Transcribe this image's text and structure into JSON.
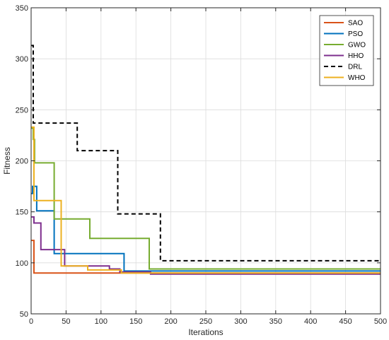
{
  "chart_data": {
    "type": "line",
    "title": "",
    "xlabel": "Iterations",
    "ylabel": "Fitness",
    "xlim": [
      0,
      500
    ],
    "ylim": [
      50,
      350
    ],
    "xticks": [
      0,
      50,
      100,
      150,
      200,
      250,
      300,
      350,
      400,
      450,
      500
    ],
    "yticks": [
      50,
      100,
      150,
      200,
      250,
      300,
      350
    ],
    "grid": true,
    "legend_position": "top-right",
    "series": [
      {
        "name": "SAO",
        "color": "#D95319",
        "dash": "solid",
        "points": [
          [
            0,
            122
          ],
          [
            4,
            122
          ],
          [
            4,
            90
          ],
          [
            500,
            90
          ]
        ]
      },
      {
        "name": "PSO",
        "color": "#0072BD",
        "dash": "solid",
        "points": [
          [
            0,
            168
          ],
          [
            2,
            168
          ],
          [
            2,
            175
          ],
          [
            8,
            175
          ],
          [
            8,
            151
          ],
          [
            22,
            151
          ],
          [
            22,
            151
          ],
          [
            33,
            151
          ],
          [
            33,
            109
          ],
          [
            133,
            109
          ],
          [
            133,
            92
          ],
          [
            500,
            92
          ]
        ]
      },
      {
        "name": "GWO",
        "color": "#77AC30",
        "dash": "solid",
        "points": [
          [
            0,
            232
          ],
          [
            3,
            232
          ],
          [
            3,
            221
          ],
          [
            5,
            221
          ],
          [
            5,
            198
          ],
          [
            33,
            198
          ],
          [
            33,
            143
          ],
          [
            84,
            143
          ],
          [
            84,
            124
          ],
          [
            169,
            124
          ],
          [
            169,
            94
          ],
          [
            500,
            94
          ]
        ]
      },
      {
        "name": "HHO",
        "color": "#7E2F8E",
        "dash": "solid",
        "points": [
          [
            0,
            145
          ],
          [
            4,
            145
          ],
          [
            4,
            139
          ],
          [
            14,
            139
          ],
          [
            14,
            113
          ],
          [
            48,
            113
          ],
          [
            48,
            97
          ],
          [
            112,
            97
          ],
          [
            112,
            94
          ],
          [
            127,
            94
          ],
          [
            127,
            91
          ],
          [
            171,
            91
          ],
          [
            171,
            89
          ],
          [
            500,
            89
          ]
        ]
      },
      {
        "name": "DRL",
        "color": "#000000",
        "dash": "dashed",
        "points": [
          [
            0,
            313
          ],
          [
            3,
            313
          ],
          [
            3,
            237
          ],
          [
            66,
            237
          ],
          [
            66,
            210
          ],
          [
            124,
            210
          ],
          [
            124,
            148
          ],
          [
            185,
            148
          ],
          [
            185,
            102
          ],
          [
            500,
            102
          ]
        ]
      },
      {
        "name": "WHO",
        "color": "#EDB120",
        "dash": "solid",
        "points": [
          [
            0,
            233
          ],
          [
            4,
            233
          ],
          [
            4,
            161
          ],
          [
            43,
            161
          ],
          [
            43,
            97
          ],
          [
            81,
            97
          ],
          [
            81,
            93
          ],
          [
            129,
            93
          ],
          [
            129,
            90
          ],
          [
            500,
            90
          ]
        ]
      }
    ]
  }
}
